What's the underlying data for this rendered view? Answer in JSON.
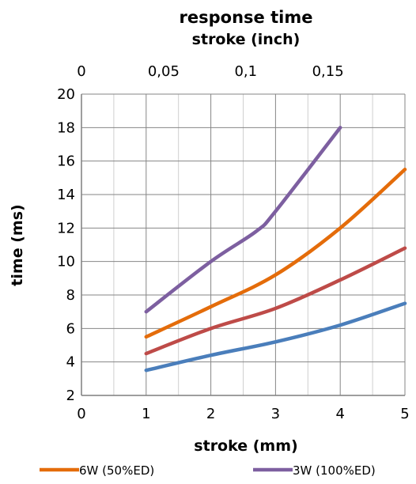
{
  "chart_data": {
    "type": "line",
    "title": "response time",
    "secondary_xlabel": "stroke (inch)",
    "xlabel": "stroke (mm)",
    "ylabel": "time (ms)",
    "xlim": [
      0,
      5
    ],
    "ylim": [
      2,
      20
    ],
    "x_ticks": [
      "0",
      "1",
      "2",
      "3",
      "4",
      "5"
    ],
    "y_ticks": [
      "2",
      "4",
      "6",
      "8",
      "10",
      "12",
      "14",
      "16",
      "18",
      "20"
    ],
    "secondary_x_ticks": [
      {
        "label": "0",
        "value_mm": 0
      },
      {
        "label": "0,05",
        "value_mm": 1.27
      },
      {
        "label": "0,1",
        "value_mm": 2.54
      },
      {
        "label": "0,15",
        "value_mm": 3.81
      }
    ],
    "grid": true,
    "legend_position": "bottom",
    "series": [
      {
        "name": "",
        "color": "#4a7ebb",
        "x": [
          1,
          2,
          3,
          4,
          5
        ],
        "y": [
          3.5,
          4.4,
          5.2,
          6.2,
          7.5
        ]
      },
      {
        "name": "",
        "color": "#be4b48",
        "x": [
          1,
          2,
          3,
          4,
          5
        ],
        "y": [
          4.5,
          6.0,
          7.2,
          8.9,
          10.8
        ]
      },
      {
        "name": "6W (50%ED)",
        "color": "#e46c0a",
        "x": [
          1,
          2,
          3,
          4,
          5
        ],
        "y": [
          5.5,
          7.3,
          9.2,
          12.0,
          15.5
        ]
      },
      {
        "name": "3W (100%ED)",
        "color": "#7d5fa0",
        "x": [
          1,
          2,
          2.7,
          3,
          4
        ],
        "y": [
          7.0,
          10.0,
          11.8,
          13.0,
          18.0
        ]
      }
    ]
  }
}
